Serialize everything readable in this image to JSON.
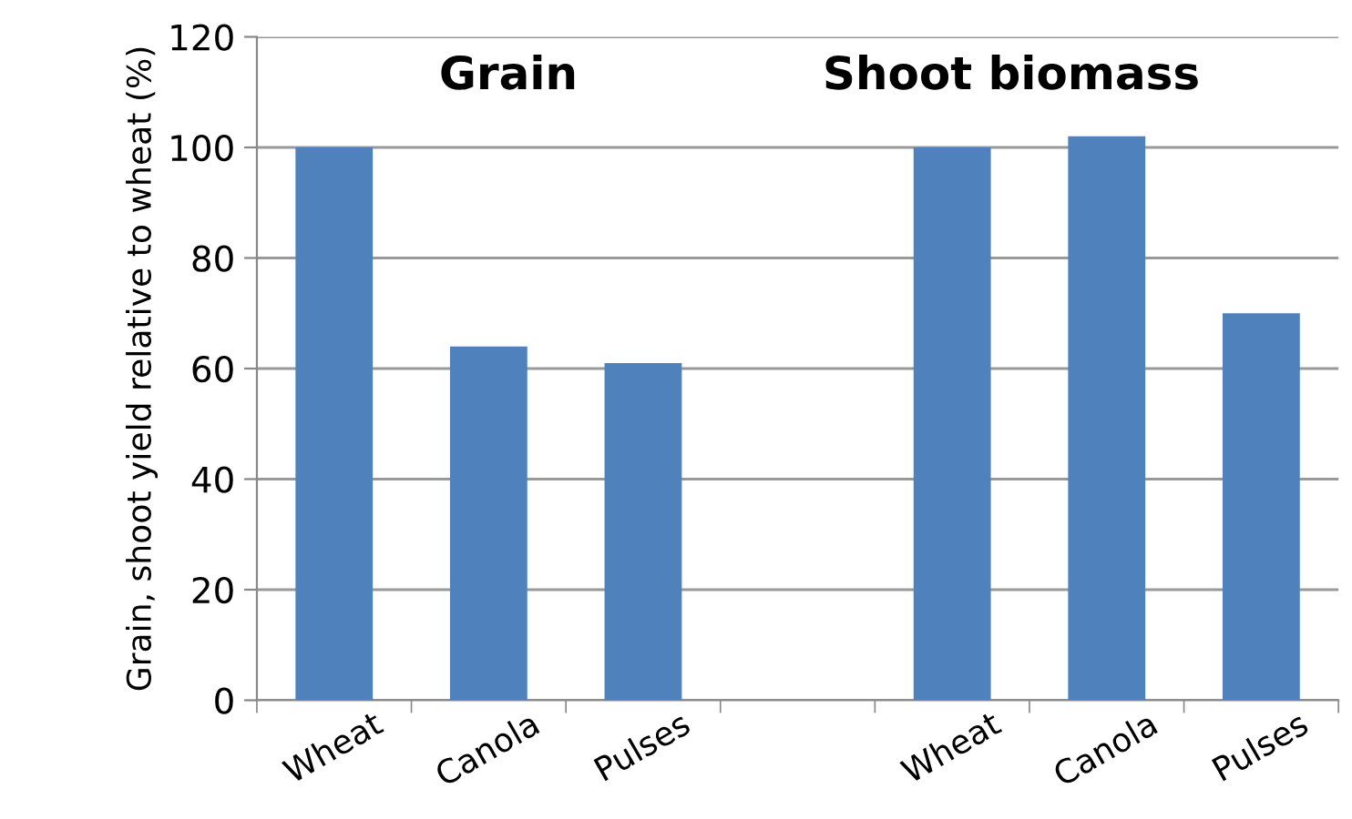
{
  "chart_data": {
    "type": "bar",
    "categories": [
      "Wheat",
      "Canola",
      "Pulses",
      null,
      "Wheat",
      "Canola",
      "Pulses"
    ],
    "values": [
      100,
      64,
      61,
      null,
      100,
      102,
      70
    ],
    "color": "#4f81bd",
    "ylabel": "Grain, shoot yield relative to wheat (%)",
    "ylim": [
      0,
      120
    ],
    "yticks": [
      0,
      20,
      40,
      60,
      80,
      100,
      120
    ],
    "grid": "y",
    "annotations": [
      "Grain",
      "Shoot biomass"
    ]
  }
}
